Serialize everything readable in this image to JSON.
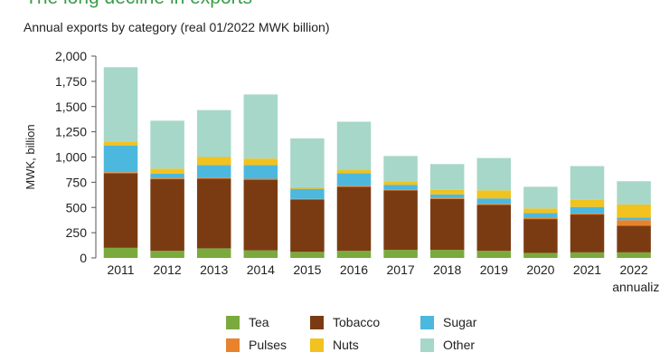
{
  "header": {
    "title": "The long decline in exports",
    "subtitle": "Annual exports by category (real 01/2022 MWK billion)"
  },
  "chart_data": {
    "type": "bar",
    "stacked": true,
    "categories": [
      "2011",
      "2012",
      "2013",
      "2014",
      "2015",
      "2016",
      "2017",
      "2018",
      "2019",
      "2020",
      "2021",
      "2022"
    ],
    "category_sublabels": [
      "",
      "",
      "",
      "",
      "",
      "",
      "",
      "",
      "",
      "",
      "",
      "annualized"
    ],
    "ylabel": "MWK, billion",
    "ylim": [
      0,
      2000
    ],
    "yticks": [
      0,
      250,
      500,
      750,
      1000,
      1250,
      1500,
      1750,
      2000
    ],
    "ytick_labels": [
      "0",
      "250",
      "500",
      "750",
      "1,000",
      "1,250",
      "1,500",
      "1,750",
      "2,000"
    ],
    "grid": false,
    "legend_position": "bottom",
    "series": [
      {
        "name": "Tea",
        "color": "#7aaa3e",
        "values": [
          100,
          70,
          95,
          75,
          60,
          70,
          80,
          80,
          70,
          50,
          55,
          55
        ]
      },
      {
        "name": "Tobacco",
        "color": "#7b3b12",
        "values": [
          740,
          710,
          690,
          700,
          520,
          635,
          590,
          505,
          455,
          335,
          375,
          265
        ]
      },
      {
        "name": "Pulses",
        "color": "#e8822c",
        "values": [
          10,
          10,
          10,
          10,
          5,
          10,
          10,
          10,
          10,
          10,
          10,
          55
        ]
      },
      {
        "name": "Sugar",
        "color": "#4db8de",
        "values": [
          265,
          45,
          125,
          135,
          100,
          125,
          45,
          35,
          55,
          50,
          65,
          25
        ]
      },
      {
        "name": "Nuts",
        "color": "#f2c21e",
        "values": [
          40,
          50,
          80,
          65,
          15,
          30,
          35,
          45,
          80,
          45,
          70,
          130
        ]
      },
      {
        "name": "Other",
        "color": "#a6d7c8",
        "values": [
          735,
          475,
          465,
          635,
          485,
          480,
          250,
          255,
          320,
          215,
          335,
          230
        ]
      }
    ],
    "legend_order": [
      "Tea",
      "Tobacco",
      "Sugar",
      "Pulses",
      "Nuts",
      "Other"
    ],
    "axis_color": "#555555"
  }
}
